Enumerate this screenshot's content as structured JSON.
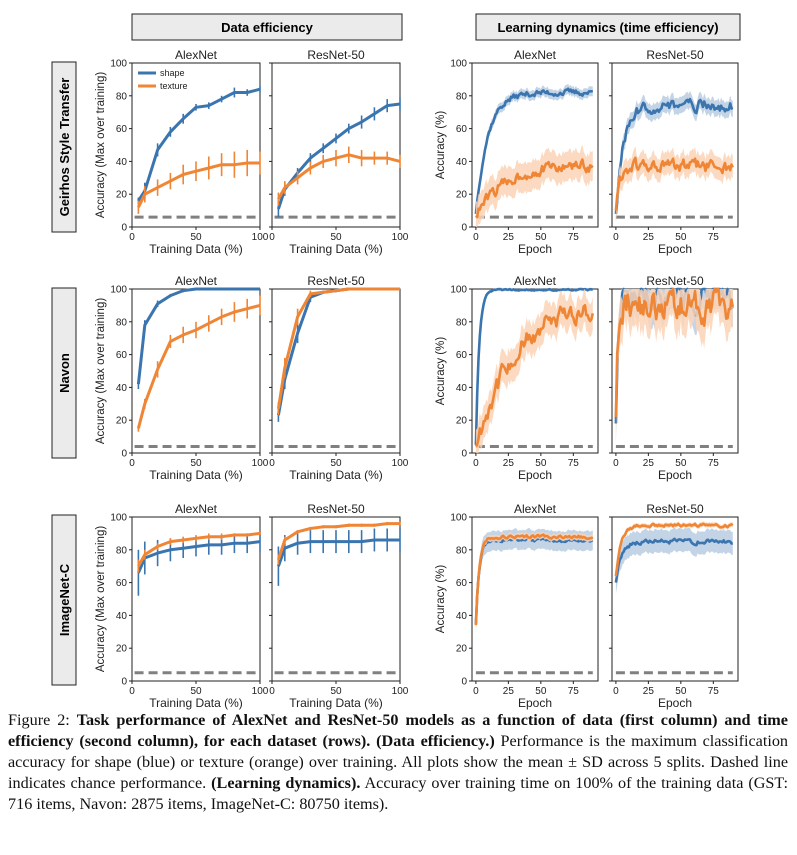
{
  "headers": {
    "data_efficiency": "Data efficiency",
    "learning_dynamics": "Learning dynamics (time efficiency)"
  },
  "row_labels": [
    "Geirhos Style Transfer",
    "Navon",
    "ImageNet-C"
  ],
  "model_titles": [
    "AlexNet",
    "ResNet-50"
  ],
  "axis_labels": {
    "data_x": "Training Data (%)",
    "data_y": "Accuracy (Max over training)",
    "time_x": "Epoch",
    "time_y": "Accuracy (%)"
  },
  "legend": {
    "shape": "shape",
    "texture": "texture"
  },
  "colors": {
    "shape": "#3b75af",
    "texture": "#ef8636",
    "chance": "#808080",
    "shape_band": "#b9cde2",
    "texture_band": "#fbd3b6"
  },
  "caption": {
    "lead": "Figure 2: ",
    "bold1": "Task performance of AlexNet and ResNet-50 models as a function of data (first column) and time efficiency (second column), for each dataset (rows). (Data efficiency.)",
    "text1": " Performance is the maximum classification accuracy for shape (blue) or texture (orange) over training. All plots show the mean ± SD across 5 splits. Dashed line indicates chance performance. ",
    "bold2": "(Learning dynamics).",
    "text2": " Accuracy over training time on 100% of the training data (GST: 716 items, Navon: 2875 items, ImageNet-C: 80750 items)."
  },
  "chart_data": [
    {
      "type": "line",
      "title": "AlexNet",
      "dataset": "Geirhos Style Transfer",
      "panel": "data efficiency",
      "xlabel": "Training Data (%)",
      "ylabel": "Accuracy (Max over training)",
      "xlim": [
        0,
        100
      ],
      "ylim": [
        0,
        100
      ],
      "xticks": [
        0,
        50,
        100
      ],
      "yticks": [
        0,
        20,
        40,
        60,
        80,
        100
      ],
      "chance": 6,
      "legend": "top-left",
      "x": [
        5,
        10,
        20,
        30,
        40,
        50,
        60,
        70,
        80,
        90,
        100
      ],
      "series": [
        {
          "name": "shape",
          "values": [
            16,
            22,
            47,
            58,
            66,
            73,
            74,
            78,
            82,
            82,
            84
          ],
          "sd": [
            2,
            5,
            4,
            3,
            3,
            2,
            2,
            2,
            3,
            2,
            2
          ]
        },
        {
          "name": "texture",
          "values": [
            12,
            20,
            24,
            28,
            32,
            34,
            36,
            38,
            38,
            39,
            39
          ],
          "sd": [
            4,
            5,
            5,
            5,
            6,
            6,
            7,
            7,
            8,
            8,
            7
          ]
        }
      ]
    },
    {
      "type": "line",
      "title": "ResNet-50",
      "dataset": "Geirhos Style Transfer",
      "panel": "data efficiency",
      "xlabel": "Training Data (%)",
      "xlim": [
        0,
        100
      ],
      "ylim": [
        0,
        100
      ],
      "xticks": [
        0,
        50,
        100
      ],
      "chance": 6,
      "x": [
        5,
        10,
        20,
        30,
        40,
        50,
        60,
        70,
        80,
        90,
        100
      ],
      "series": [
        {
          "name": "shape",
          "values": [
            11,
            23,
            33,
            42,
            48,
            54,
            60,
            64,
            69,
            74,
            75
          ],
          "sd": [
            5,
            4,
            3,
            3,
            3,
            3,
            3,
            4,
            4,
            4,
            4
          ]
        },
        {
          "name": "texture",
          "values": [
            17,
            24,
            30,
            36,
            40,
            42,
            44,
            42,
            42,
            42,
            40
          ],
          "sd": [
            4,
            4,
            4,
            4,
            4,
            5,
            5,
            5,
            4,
            4,
            4
          ]
        }
      ]
    },
    {
      "type": "line",
      "title": "AlexNet",
      "dataset": "Geirhos Style Transfer",
      "panel": "learning dynamics",
      "xlabel": "Epoch",
      "ylabel": "Accuracy (%)",
      "xlim": [
        -3,
        94
      ],
      "ylim": [
        0,
        100
      ],
      "xticks": [
        0,
        25,
        50,
        75
      ],
      "yticks": [
        0,
        20,
        40,
        60,
        80,
        100
      ],
      "chance": 6,
      "series": [
        {
          "name": "shape",
          "start": 8,
          "plateau": 82,
          "rate": 9,
          "noise": 1.6,
          "band": 3
        },
        {
          "name": "texture",
          "start": 7,
          "plateau": 38,
          "rate": 22,
          "noise": 3,
          "band": 9
        }
      ]
    },
    {
      "type": "line",
      "title": "ResNet-50",
      "dataset": "Geirhos Style Transfer",
      "panel": "learning dynamics",
      "xlabel": "Epoch",
      "xlim": [
        -3,
        94
      ],
      "ylim": [
        0,
        100
      ],
      "xticks": [
        0,
        25,
        50,
        75
      ],
      "chance": 6,
      "series": [
        {
          "name": "shape",
          "start": 8,
          "plateau": 74,
          "rate": 6,
          "noise": 3,
          "band": 5
        },
        {
          "name": "texture",
          "start": 10,
          "plateau": 37,
          "rate": 3,
          "noise": 3.5,
          "band": 7
        }
      ]
    },
    {
      "type": "line",
      "title": "AlexNet",
      "dataset": "Navon",
      "panel": "data efficiency",
      "xlabel": "Training Data (%)",
      "ylabel": "Accuracy (Max over training)",
      "xlim": [
        0,
        100
      ],
      "ylim": [
        0,
        100
      ],
      "xticks": [
        0,
        50,
        100
      ],
      "yticks": [
        0,
        20,
        40,
        60,
        80,
        100
      ],
      "chance": 4,
      "x": [
        5,
        10,
        20,
        30,
        40,
        50,
        60,
        70,
        80,
        90,
        100
      ],
      "series": [
        {
          "name": "shape",
          "values": [
            42,
            78,
            91,
            96,
            99,
            100,
            100,
            100,
            100,
            100,
            100
          ],
          "sd": [
            3,
            3,
            2,
            1,
            1,
            0,
            0,
            0,
            0,
            0,
            0
          ]
        },
        {
          "name": "texture",
          "values": [
            15,
            30,
            51,
            68,
            72,
            75,
            79,
            83,
            86,
            88,
            90
          ],
          "sd": [
            2,
            3,
            5,
            4,
            5,
            5,
            5,
            5,
            6,
            6,
            6
          ]
        }
      ]
    },
    {
      "type": "line",
      "title": "ResNet-50",
      "dataset": "Navon",
      "panel": "data efficiency",
      "xlabel": "Training Data (%)",
      "xlim": [
        0,
        100
      ],
      "ylim": [
        0,
        100
      ],
      "xticks": [
        0,
        50,
        100
      ],
      "chance": 4,
      "x": [
        5,
        10,
        20,
        30,
        40,
        50,
        60,
        70,
        80,
        90,
        100
      ],
      "series": [
        {
          "name": "shape",
          "values": [
            23,
            45,
            73,
            95,
            98,
            99,
            100,
            100,
            100,
            100,
            100
          ],
          "sd": [
            4,
            6,
            6,
            3,
            1,
            1,
            0,
            0,
            0,
            0,
            0
          ]
        },
        {
          "name": "texture",
          "values": [
            27,
            52,
            83,
            97,
            98,
            99,
            100,
            100,
            100,
            100,
            100
          ],
          "sd": [
            4,
            6,
            5,
            2,
            1,
            1,
            0,
            0,
            0,
            0,
            0
          ]
        }
      ]
    },
    {
      "type": "line",
      "title": "AlexNet",
      "dataset": "Navon",
      "panel": "learning dynamics",
      "xlabel": "Epoch",
      "ylabel": "Accuracy (%)",
      "xlim": [
        -3,
        94
      ],
      "ylim": [
        0,
        100
      ],
      "xticks": [
        0,
        25,
        50,
        75
      ],
      "yticks": [
        0,
        20,
        40,
        60,
        80,
        100
      ],
      "chance": 4,
      "series": [
        {
          "name": "shape",
          "start": 5,
          "plateau": 99.5,
          "rate": 2.5,
          "noise": 0.4,
          "band": 1
        },
        {
          "name": "texture",
          "start": 4,
          "plateau": 92,
          "rate": 30,
          "noise": 5,
          "band": 10
        }
      ]
    },
    {
      "type": "line",
      "title": "ResNet-50",
      "dataset": "Navon",
      "panel": "learning dynamics",
      "xlabel": "Epoch",
      "xlim": [
        -3,
        94
      ],
      "ylim": [
        0,
        100
      ],
      "xticks": [
        0,
        25,
        50,
        75
      ],
      "chance": 4,
      "series": [
        {
          "name": "shape",
          "start": 18,
          "plateau": 96,
          "rate": 1.5,
          "noise": 7,
          "band": 12
        },
        {
          "name": "texture",
          "start": 22,
          "plateau": 90,
          "rate": 1.5,
          "noise": 8,
          "band": 14
        }
      ]
    },
    {
      "type": "line",
      "title": "AlexNet",
      "dataset": "ImageNet-C",
      "panel": "data efficiency",
      "xlabel": "Training Data (%)",
      "ylabel": "Accuracy (Max over training)",
      "xlim": [
        0,
        100
      ],
      "ylim": [
        0,
        100
      ],
      "xticks": [
        0,
        50,
        100
      ],
      "yticks": [
        0,
        20,
        40,
        60,
        80,
        100
      ],
      "chance": 5,
      "x": [
        5,
        10,
        20,
        30,
        40,
        50,
        60,
        70,
        80,
        90,
        100
      ],
      "series": [
        {
          "name": "shape",
          "values": [
            66,
            75,
            78,
            80,
            81,
            82,
            83,
            83,
            84,
            84,
            85
          ],
          "sd": [
            14,
            10,
            8,
            7,
            6,
            6,
            6,
            6,
            6,
            6,
            6
          ]
        },
        {
          "name": "texture",
          "values": [
            70,
            77,
            82,
            85,
            86,
            87,
            88,
            88,
            89,
            89,
            90
          ],
          "sd": [
            4,
            3,
            2,
            2,
            2,
            2,
            2,
            2,
            1,
            1,
            1
          ]
        }
      ]
    },
    {
      "type": "line",
      "title": "ResNet-50",
      "dataset": "ImageNet-C",
      "panel": "data efficiency",
      "xlabel": "Training Data (%)",
      "xlim": [
        0,
        100
      ],
      "ylim": [
        0,
        100
      ],
      "xticks": [
        0,
        50,
        100
      ],
      "chance": 5,
      "x": [
        5,
        10,
        20,
        30,
        40,
        50,
        60,
        70,
        80,
        90,
        100
      ],
      "series": [
        {
          "name": "shape",
          "values": [
            70,
            81,
            84,
            85,
            85,
            85,
            85,
            85,
            86,
            86,
            86
          ],
          "sd": [
            12,
            8,
            7,
            7,
            7,
            7,
            7,
            7,
            7,
            7,
            7
          ]
        },
        {
          "name": "texture",
          "values": [
            74,
            86,
            91,
            93,
            94,
            94,
            95,
            95,
            95,
            96,
            96
          ],
          "sd": [
            3,
            2,
            1,
            1,
            1,
            1,
            1,
            1,
            1,
            1,
            1
          ]
        }
      ]
    },
    {
      "type": "line",
      "title": "AlexNet",
      "dataset": "ImageNet-C",
      "panel": "learning dynamics",
      "xlabel": "Epoch",
      "ylabel": "Accuracy (%)",
      "xlim": [
        -3,
        94
      ],
      "ylim": [
        0,
        100
      ],
      "xticks": [
        0,
        25,
        50,
        75
      ],
      "yticks": [
        0,
        20,
        40,
        60,
        80,
        100
      ],
      "chance": 5,
      "series": [
        {
          "name": "shape",
          "start": 35,
          "plateau": 86,
          "rate": 2.5,
          "noise": 0.8,
          "band": 6
        },
        {
          "name": "texture",
          "start": 34,
          "plateau": 88,
          "rate": 2.5,
          "noise": 0.8,
          "band": 2
        }
      ]
    },
    {
      "type": "line",
      "title": "ResNet-50",
      "dataset": "ImageNet-C",
      "panel": "learning dynamics",
      "xlabel": "Epoch",
      "xlim": [
        -3,
        94
      ],
      "ylim": [
        0,
        100
      ],
      "xticks": [
        0,
        25,
        50,
        75
      ],
      "chance": 5,
      "series": [
        {
          "name": "shape",
          "start": 60,
          "plateau": 85,
          "rate": 4,
          "noise": 1.2,
          "band": 7
        },
        {
          "name": "texture",
          "start": 64,
          "plateau": 95,
          "rate": 4,
          "noise": 0.8,
          "band": 1.5
        }
      ]
    }
  ]
}
